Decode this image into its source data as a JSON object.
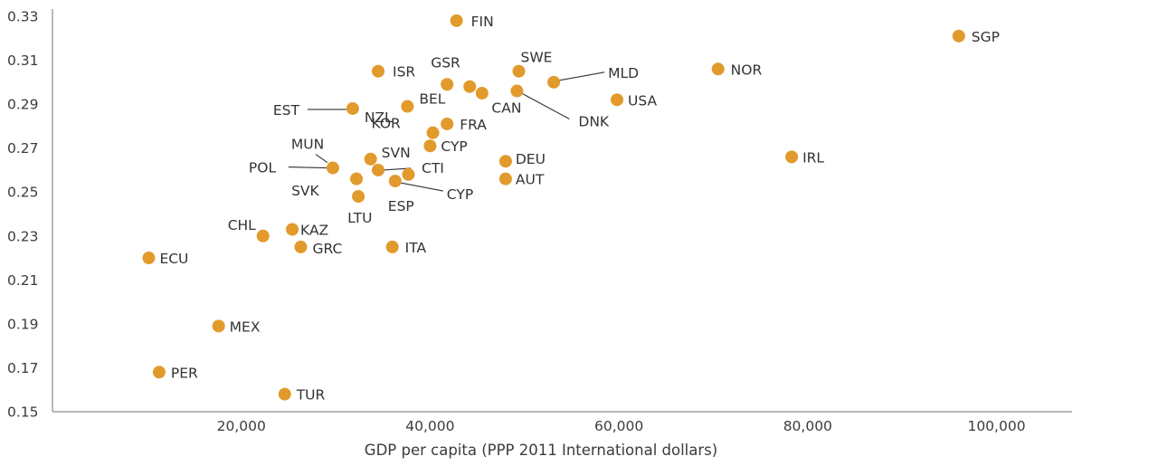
{
  "chart_data": {
    "type": "scatter",
    "title": "",
    "xlabel": "GDP per capita (PPP 2011 International dollars)",
    "ylabel": "",
    "xlim": [
      0,
      108000
    ],
    "ylim": [
      0.15,
      0.33
    ],
    "grid": false,
    "legend": "none",
    "xticks": [
      {
        "value": 20000,
        "label": "20,000"
      },
      {
        "value": 40000,
        "label": "40,000"
      },
      {
        "value": 60000,
        "label": "60,000"
      },
      {
        "value": 80000,
        "label": "80,000"
      },
      {
        "value": 100000,
        "label": "100,000"
      }
    ],
    "yticks": [
      {
        "value": 0.33,
        "label": "0.33"
      },
      {
        "value": 0.31,
        "label": "0.31"
      },
      {
        "value": 0.29,
        "label": "0.29"
      },
      {
        "value": 0.27,
        "label": "0.27"
      },
      {
        "value": 0.25,
        "label": "0.25"
      },
      {
        "value": 0.23,
        "label": "0.23"
      },
      {
        "value": 0.21,
        "label": "0.21"
      },
      {
        "value": 0.19,
        "label": "0.19"
      },
      {
        "value": 0.17,
        "label": "0.17"
      },
      {
        "value": 0.15,
        "label": "0.15"
      }
    ],
    "marker_color": "#E19A2B",
    "points": [
      {
        "label": "FIN",
        "x": 42800,
        "y": 0.328
      },
      {
        "label": "SGP",
        "x": 96000,
        "y": 0.321
      },
      {
        "label": "SWE",
        "x": 49400,
        "y": 0.305
      },
      {
        "label": "NOR",
        "x": 70500,
        "y": 0.306
      },
      {
        "label": "ISR",
        "x": 34500,
        "y": 0.305
      },
      {
        "label": "MLD",
        "x": 53100,
        "y": 0.3
      },
      {
        "label": "GSR",
        "x": 41800,
        "y": 0.299
      },
      {
        "label": "",
        "x": 44200,
        "y": 0.298
      },
      {
        "label": "",
        "x": 45500,
        "y": 0.295
      },
      {
        "label": "CAN",
        "x": 49200,
        "y": 0.296
      },
      {
        "label": "USA",
        "x": 59800,
        "y": 0.292
      },
      {
        "label": "DNK",
        "x": 49200,
        "y": 0.296
      },
      {
        "label": "BEL",
        "x": 37600,
        "y": 0.289
      },
      {
        "label": "EST",
        "x": 31800,
        "y": 0.288
      },
      {
        "label": "NZL",
        "x": 31800,
        "y": 0.288
      },
      {
        "label": "FRA",
        "x": 41800,
        "y": 0.281
      },
      {
        "label": "KOR",
        "x": 40300,
        "y": 0.277
      },
      {
        "label": "CYP",
        "x": 40000,
        "y": 0.271
      },
      {
        "label": "IRL",
        "x": 78300,
        "y": 0.266
      },
      {
        "label": "DEU",
        "x": 48000,
        "y": 0.264
      },
      {
        "label": "SVN",
        "x": 33700,
        "y": 0.265
      },
      {
        "label": "MUN",
        "x": 29700,
        "y": 0.261
      },
      {
        "label": "POL",
        "x": 29700,
        "y": 0.261
      },
      {
        "label": "CTI",
        "x": 34500,
        "y": 0.26
      },
      {
        "label": "",
        "x": 37700,
        "y": 0.258
      },
      {
        "label": "AUT",
        "x": 48000,
        "y": 0.256
      },
      {
        "label": "",
        "x": 32200,
        "y": 0.256
      },
      {
        "label": "ESP",
        "x": 36300,
        "y": 0.255
      },
      {
        "label": "CYP",
        "x": 36300,
        "y": 0.255
      },
      {
        "label": "SVK",
        "x": 32400,
        "y": 0.248
      },
      {
        "label": "LTU",
        "x": 32400,
        "y": 0.248
      },
      {
        "label": "CHL",
        "x": 22300,
        "y": 0.23
      },
      {
        "label": "KAZ",
        "x": 25400,
        "y": 0.233
      },
      {
        "label": "GRC",
        "x": 26300,
        "y": 0.225
      },
      {
        "label": "ITA",
        "x": 36000,
        "y": 0.225
      },
      {
        "label": "ECU",
        "x": 10200,
        "y": 0.22
      },
      {
        "label": "MEX",
        "x": 17600,
        "y": 0.189
      },
      {
        "label": "PER",
        "x": 11300,
        "y": 0.168
      },
      {
        "label": "TUR",
        "x": 24600,
        "y": 0.158
      }
    ]
  }
}
